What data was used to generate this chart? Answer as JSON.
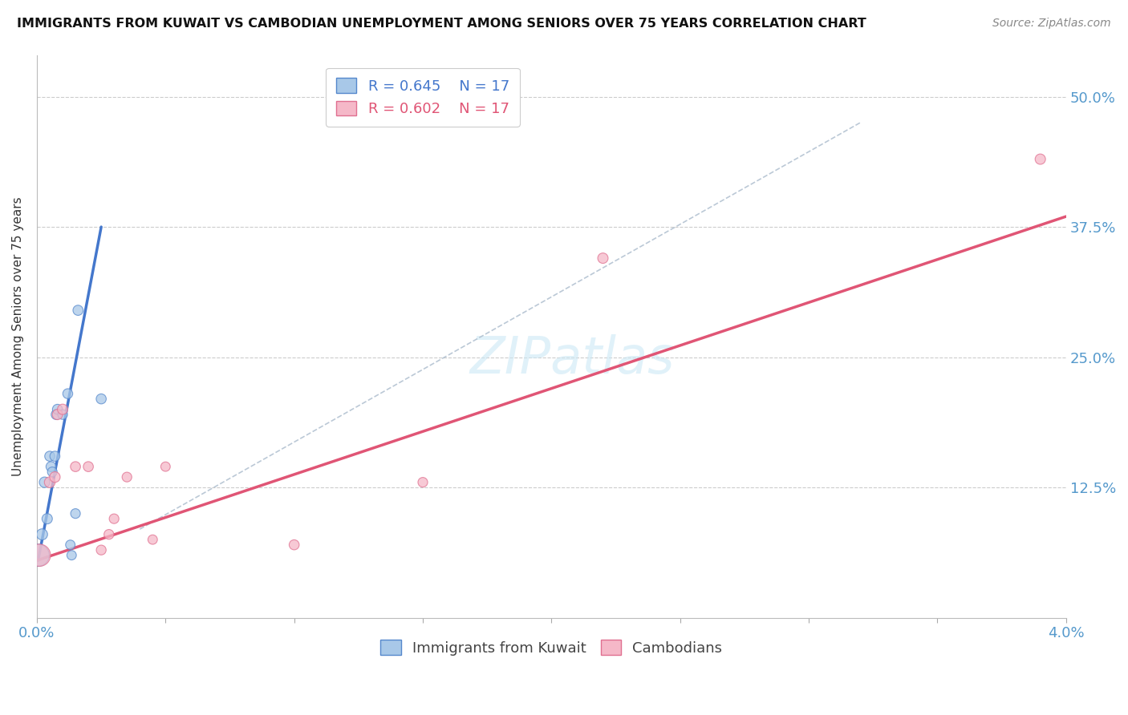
{
  "title": "IMMIGRANTS FROM KUWAIT VS CAMBODIAN UNEMPLOYMENT AMONG SENIORS OVER 75 YEARS CORRELATION CHART",
  "source": "Source: ZipAtlas.com",
  "ylabel": "Unemployment Among Seniors over 75 years",
  "ytick_labels": [
    "",
    "12.5%",
    "25.0%",
    "37.5%",
    "50.0%"
  ],
  "ytick_values": [
    0,
    0.125,
    0.25,
    0.375,
    0.5
  ],
  "legend_label1": "Immigrants from Kuwait",
  "legend_label2": "Cambodians",
  "blue_color": "#a8c8e8",
  "pink_color": "#f5b8c8",
  "blue_edge": "#5588cc",
  "pink_edge": "#e07090",
  "blue_line": "#4477cc",
  "pink_line": "#e05575",
  "dash_color": "#aabbcc",
  "watermark": "ZIPatlas",
  "kuwait_points": [
    [
      5e-05,
      0.06,
      220
    ],
    [
      0.0002,
      0.08,
      55
    ],
    [
      0.0003,
      0.13,
      50
    ],
    [
      0.0004,
      0.095,
      48
    ],
    [
      0.0005,
      0.155,
      45
    ],
    [
      0.00055,
      0.145,
      45
    ],
    [
      0.0006,
      0.14,
      42
    ],
    [
      0.0007,
      0.155,
      45
    ],
    [
      0.00075,
      0.195,
      45
    ],
    [
      0.0008,
      0.2,
      45
    ],
    [
      0.001,
      0.195,
      43
    ],
    [
      0.0012,
      0.215,
      44
    ],
    [
      0.0013,
      0.07,
      40
    ],
    [
      0.00135,
      0.06,
      40
    ],
    [
      0.0015,
      0.1,
      42
    ],
    [
      0.0016,
      0.295,
      46
    ],
    [
      0.0025,
      0.21,
      45
    ]
  ],
  "cambodian_points": [
    [
      0.0001,
      0.06,
      220
    ],
    [
      0.0005,
      0.13,
      52
    ],
    [
      0.0007,
      0.135,
      50
    ],
    [
      0.0008,
      0.195,
      48
    ],
    [
      0.001,
      0.2,
      48
    ],
    [
      0.0015,
      0.145,
      45
    ],
    [
      0.002,
      0.145,
      45
    ],
    [
      0.0025,
      0.065,
      43
    ],
    [
      0.0028,
      0.08,
      43
    ],
    [
      0.003,
      0.095,
      42
    ],
    [
      0.0035,
      0.135,
      42
    ],
    [
      0.0045,
      0.075,
      40
    ],
    [
      0.005,
      0.145,
      40
    ],
    [
      0.01,
      0.07,
      45
    ],
    [
      0.015,
      0.13,
      42
    ],
    [
      0.022,
      0.345,
      48
    ],
    [
      0.039,
      0.44,
      48
    ]
  ],
  "xlim": [
    0,
    0.04
  ],
  "ylim": [
    0,
    0.54
  ],
  "blue_line_x": [
    5e-05,
    0.0025
  ],
  "blue_line_y": [
    0.055,
    0.375
  ],
  "pink_line_x": [
    0.0,
    0.04
  ],
  "pink_line_y": [
    0.055,
    0.385
  ],
  "dash_line_x": [
    0.004,
    0.032
  ],
  "dash_line_y": [
    0.085,
    0.475
  ]
}
